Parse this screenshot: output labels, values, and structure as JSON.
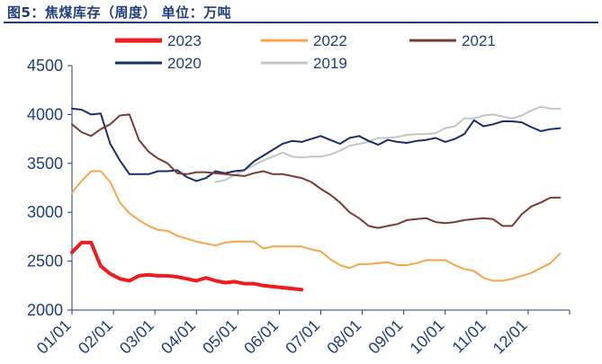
{
  "title": "图5：焦煤库存（周度）  单位：万吨",
  "chart_data": {
    "type": "line",
    "ylim": [
      2000,
      4500
    ],
    "yticks": [
      2000,
      2500,
      3000,
      3500,
      4000,
      4500
    ],
    "xtick_labels": [
      "01/01",
      "02/01",
      "03/01",
      "04/01",
      "05/01",
      "06/01",
      "07/01",
      "08/01",
      "09/01",
      "10/01",
      "11/01",
      "12/01"
    ],
    "x_unit": "week of year",
    "grid": false,
    "legend_position": "top",
    "series": [
      {
        "name": "2023",
        "color": "#ee1c1c",
        "width": 4,
        "x": [
          0,
          1,
          2,
          3,
          4,
          5,
          6,
          7,
          8,
          9,
          10,
          11,
          12,
          13,
          14,
          15,
          16,
          17,
          18,
          19,
          20,
          21,
          22,
          23,
          24
        ],
        "values": [
          2590,
          2690,
          2690,
          2450,
          2370,
          2320,
          2300,
          2350,
          2360,
          2350,
          2350,
          2340,
          2320,
          2300,
          2330,
          2300,
          2280,
          2290,
          2270,
          2270,
          2250,
          2240,
          2230,
          2220,
          2210
        ]
      },
      {
        "name": "2022",
        "color": "#f6a54a",
        "width": 2,
        "x": [
          0,
          1,
          2,
          3,
          4,
          5,
          6,
          7,
          8,
          9,
          10,
          11,
          12,
          13,
          14,
          15,
          16,
          17,
          18,
          19,
          20,
          21,
          22,
          23,
          24,
          25,
          26,
          27,
          28,
          29,
          30,
          31,
          32,
          33,
          34,
          35,
          36,
          37,
          38,
          39,
          40,
          41,
          42,
          43,
          44,
          45,
          46,
          47,
          48,
          49,
          50,
          51
        ],
        "values": [
          3200,
          3320,
          3420,
          3420,
          3310,
          3100,
          2990,
          2920,
          2860,
          2820,
          2810,
          2760,
          2730,
          2700,
          2680,
          2660,
          2690,
          2700,
          2700,
          2700,
          2630,
          2650,
          2650,
          2650,
          2650,
          2620,
          2600,
          2520,
          2460,
          2430,
          2470,
          2470,
          2480,
          2490,
          2460,
          2460,
          2480,
          2510,
          2510,
          2510,
          2460,
          2420,
          2400,
          2330,
          2300,
          2300,
          2320,
          2350,
          2380,
          2430,
          2480,
          2580
        ]
      },
      {
        "name": "2021",
        "color": "#7b3a33",
        "width": 2,
        "x": [
          0,
          1,
          2,
          3,
          4,
          5,
          6,
          7,
          8,
          9,
          10,
          11,
          12,
          13,
          14,
          15,
          16,
          17,
          18,
          19,
          20,
          21,
          22,
          23,
          24,
          25,
          26,
          27,
          28,
          29,
          30,
          31,
          32,
          33,
          34,
          35,
          36,
          37,
          38,
          39,
          40,
          41,
          42,
          43,
          44,
          45,
          46,
          47,
          48,
          49,
          50,
          51
        ],
        "values": [
          3900,
          3820,
          3780,
          3850,
          3900,
          3990,
          4000,
          3740,
          3620,
          3550,
          3500,
          3400,
          3390,
          3410,
          3410,
          3400,
          3390,
          3380,
          3370,
          3400,
          3420,
          3390,
          3390,
          3370,
          3350,
          3310,
          3240,
          3180,
          3100,
          3000,
          2940,
          2860,
          2840,
          2860,
          2880,
          2920,
          2930,
          2940,
          2900,
          2890,
          2900,
          2920,
          2930,
          2940,
          2930,
          2860,
          2860,
          2980,
          3060,
          3100,
          3150,
          3150
        ]
      },
      {
        "name": "2020",
        "color": "#1b2e6b",
        "width": 2,
        "x": [
          0,
          1,
          2,
          3,
          4,
          5,
          6,
          7,
          8,
          9,
          10,
          11,
          12,
          13,
          14,
          15,
          16,
          17,
          18,
          19,
          20,
          21,
          22,
          23,
          24,
          25,
          26,
          27,
          28,
          29,
          30,
          31,
          32,
          33,
          34,
          35,
          36,
          37,
          38,
          39,
          40,
          41,
          42,
          43,
          44,
          45,
          46,
          47,
          48,
          49,
          50,
          51
        ],
        "values": [
          4060,
          4050,
          4000,
          4010,
          3700,
          3530,
          3390,
          3390,
          3390,
          3420,
          3420,
          3430,
          3360,
          3320,
          3350,
          3420,
          3400,
          3420,
          3430,
          3520,
          3580,
          3640,
          3700,
          3730,
          3720,
          3750,
          3780,
          3740,
          3700,
          3760,
          3780,
          3730,
          3690,
          3740,
          3720,
          3710,
          3730,
          3740,
          3760,
          3720,
          3750,
          3800,
          3940,
          3880,
          3900,
          3930,
          3930,
          3920,
          3870,
          3830,
          3850,
          3860
        ]
      },
      {
        "name": "2019",
        "color": "#c4c4c4",
        "width": 2,
        "x": [
          15,
          16,
          17,
          18,
          19,
          20,
          21,
          22,
          23,
          24,
          25,
          26,
          27,
          28,
          29,
          30,
          31,
          32,
          33,
          34,
          35,
          36,
          37,
          38,
          39,
          40,
          41,
          42,
          43,
          44,
          45,
          46,
          47,
          48,
          49,
          50,
          51
        ],
        "values": [
          3310,
          3330,
          3380,
          3430,
          3480,
          3530,
          3570,
          3610,
          3570,
          3560,
          3570,
          3570,
          3590,
          3630,
          3680,
          3700,
          3720,
          3760,
          3760,
          3770,
          3790,
          3800,
          3800,
          3810,
          3860,
          3880,
          3960,
          3960,
          3990,
          4000,
          3980,
          3960,
          3990,
          4040,
          4080,
          4060,
          4060
        ]
      }
    ]
  },
  "legend_rows": [
    [
      "2023",
      "2022",
      "2021"
    ],
    [
      "2020",
      "2019"
    ]
  ]
}
